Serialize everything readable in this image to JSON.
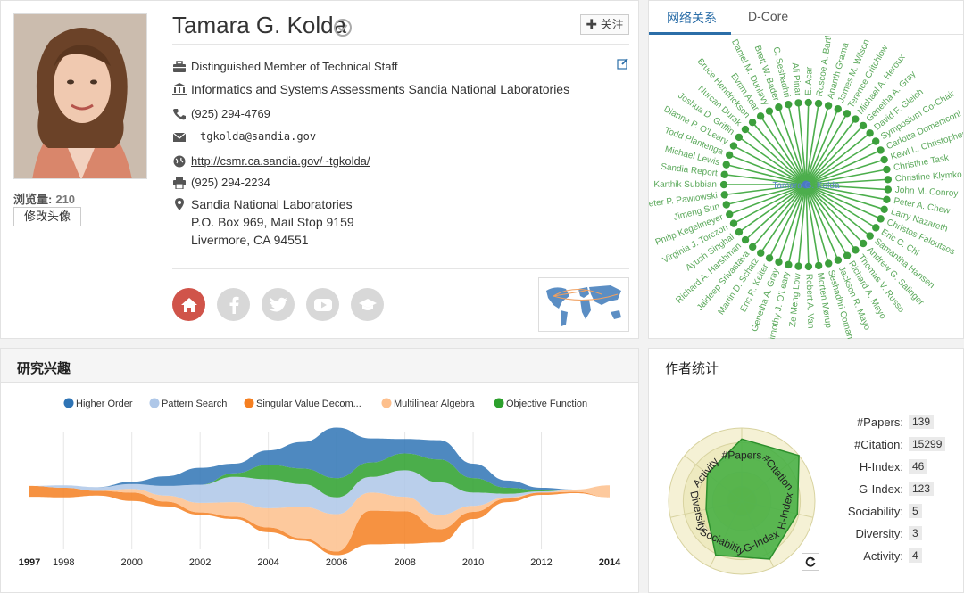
{
  "profile": {
    "name": "Tamara G. Kolda",
    "follow_label": "✚ 关注",
    "views_label": "浏览量:",
    "views_count": "210",
    "edit_avatar_label": "修改头像",
    "title": "Distinguished Member of Technical Staff",
    "org": "Informatics and Systems  Assessments Sandia National Laboratories",
    "phone": "(925) 294-4769",
    "email": "tgkolda@sandia.gov",
    "homepage": "http://csmr.ca.sandia.gov/~tgkolda/",
    "fax": "(925) 294-2234",
    "address": [
      "Sandia National Laboratories",
      "P.O. Box 969, Mail Stop 9159",
      "Livermore, CA 94551"
    ]
  },
  "network": {
    "tabs": [
      "网络关系",
      "D-Core"
    ],
    "center": "Tamara G. Kolda",
    "nodes": [
      "E. Acar",
      "Roscoe A. Bartlett",
      "Ananth Grama",
      "James M. Wilson",
      "Terence Critchlow",
      "Michael A. Heroux",
      "Genetha A. Gray",
      "David F. Gleich",
      "Symposium Co-Chair",
      "Carlotta Domeniconi",
      "Kewl L. Christopher",
      "Christine Task",
      "Christine Klymko",
      "John M. Conroy",
      "Peter A. Chew",
      "Larry Nazareth",
      "Christos Faloutsos",
      "Eric C. Chi",
      "Samantha Hansen",
      "Andrew G. Salinger",
      "Thomas V. Russo",
      "Richard A. Mayo",
      "Jackson R. Mayo",
      "Seshadhri Comandur",
      "Morten Mørup",
      "Robert A. Van",
      "Ze Meng Low",
      "Timothy J. O'Leary",
      "Genetha A. Gray",
      "Eric R. Keiter",
      "Martin D. Schatz",
      "Jaideep Srivastava",
      "Richard A. Harshman",
      "Ayush Singhal",
      "Virginia J. Torczon",
      "Philip Kegelmeyer",
      "Jimeng Sun",
      "Peter P. Pawlowski",
      "Karthik Subbian",
      "Sandia Report",
      "Michael Lewis",
      "Todd Plantenga",
      "Dianne P. O'Leary",
      "Joshua D. Griffin",
      "Nurcan Durak",
      "Bruce Hendrickson",
      "Evrim Acar",
      "Daniel M. Dunlavy",
      "Brett W. Bader",
      "C. Seshadhri",
      "Ali Pinar"
    ]
  },
  "interests": {
    "title": "研究兴趣",
    "chart_data": {
      "type": "area",
      "subtype": "streamgraph",
      "x": [
        1997,
        1998,
        1999,
        2000,
        2001,
        2002,
        2003,
        2004,
        2005,
        2006,
        2007,
        2008,
        2009,
        2010,
        2011,
        2012,
        2013,
        2014
      ],
      "x_ticks": [
        "1997",
        "1998",
        "2000",
        "2002",
        "2004",
        "2006",
        "2008",
        "2010",
        "2012",
        "2014"
      ],
      "series": [
        {
          "name": "Higher Order",
          "color": "#2f74b5",
          "values": [
            0,
            0,
            0,
            0.2,
            0.8,
            1.4,
            0.8,
            1.2,
            2.2,
            4.2,
            2.0,
            1.2,
            1.6,
            1.2,
            0.6,
            0.2,
            0,
            0
          ]
        },
        {
          "name": "Pattern Search",
          "color": "#aec7e8",
          "values": [
            0,
            0.2,
            0.3,
            0.4,
            0.8,
            1.5,
            2.1,
            2.4,
            1.9,
            1.4,
            1.3,
            2.2,
            2.7,
            1.1,
            0.3,
            0.1,
            0,
            0
          ]
        },
        {
          "name": "Singular Value Decom...",
          "color": "#f57f20",
          "values": [
            0.9,
            0.8,
            0.4,
            0.7,
            0.4,
            0.2,
            0.2,
            0.4,
            0.2,
            0.3,
            2.8,
            2.7,
            1.1,
            0.6,
            0.3,
            0.2,
            0.1,
            0
          ]
        },
        {
          "name": "Multilinear Algebra",
          "color": "#fdbf8c",
          "values": [
            0,
            0,
            0,
            0.3,
            0.5,
            0.8,
            1.2,
            1.6,
            2.6,
            3.1,
            1.5,
            1.2,
            1.2,
            0.5,
            0.1,
            0,
            0.2,
            1.0
          ]
        },
        {
          "name": "Objective Function",
          "color": "#2ca02c",
          "values": [
            0,
            0,
            0,
            0,
            0,
            0,
            0.3,
            1.2,
            1.3,
            1.6,
            1.2,
            1.4,
            1.9,
            1.2,
            0.5,
            0.1,
            0,
            0
          ]
        }
      ]
    }
  },
  "stats": {
    "title": "作者统计",
    "items": [
      {
        "label": "#Papers:",
        "value": "139"
      },
      {
        "label": "#Citation:",
        "value": "15299"
      },
      {
        "label": "H-Index:",
        "value": "46"
      },
      {
        "label": "G-Index:",
        "value": "123"
      },
      {
        "label": "Sociability:",
        "value": "5"
      },
      {
        "label": "Diversity:",
        "value": "3"
      },
      {
        "label": "Activity:",
        "value": "4"
      }
    ],
    "radar": {
      "axes": [
        "#Papers",
        "#Citation",
        "H-Index",
        "G-Index",
        "Sociability",
        "Diversity",
        "Activity"
      ],
      "values": [
        0.85,
        1.0,
        0.78,
        0.88,
        0.82,
        0.5,
        0.6
      ],
      "max": 1.0
    }
  }
}
